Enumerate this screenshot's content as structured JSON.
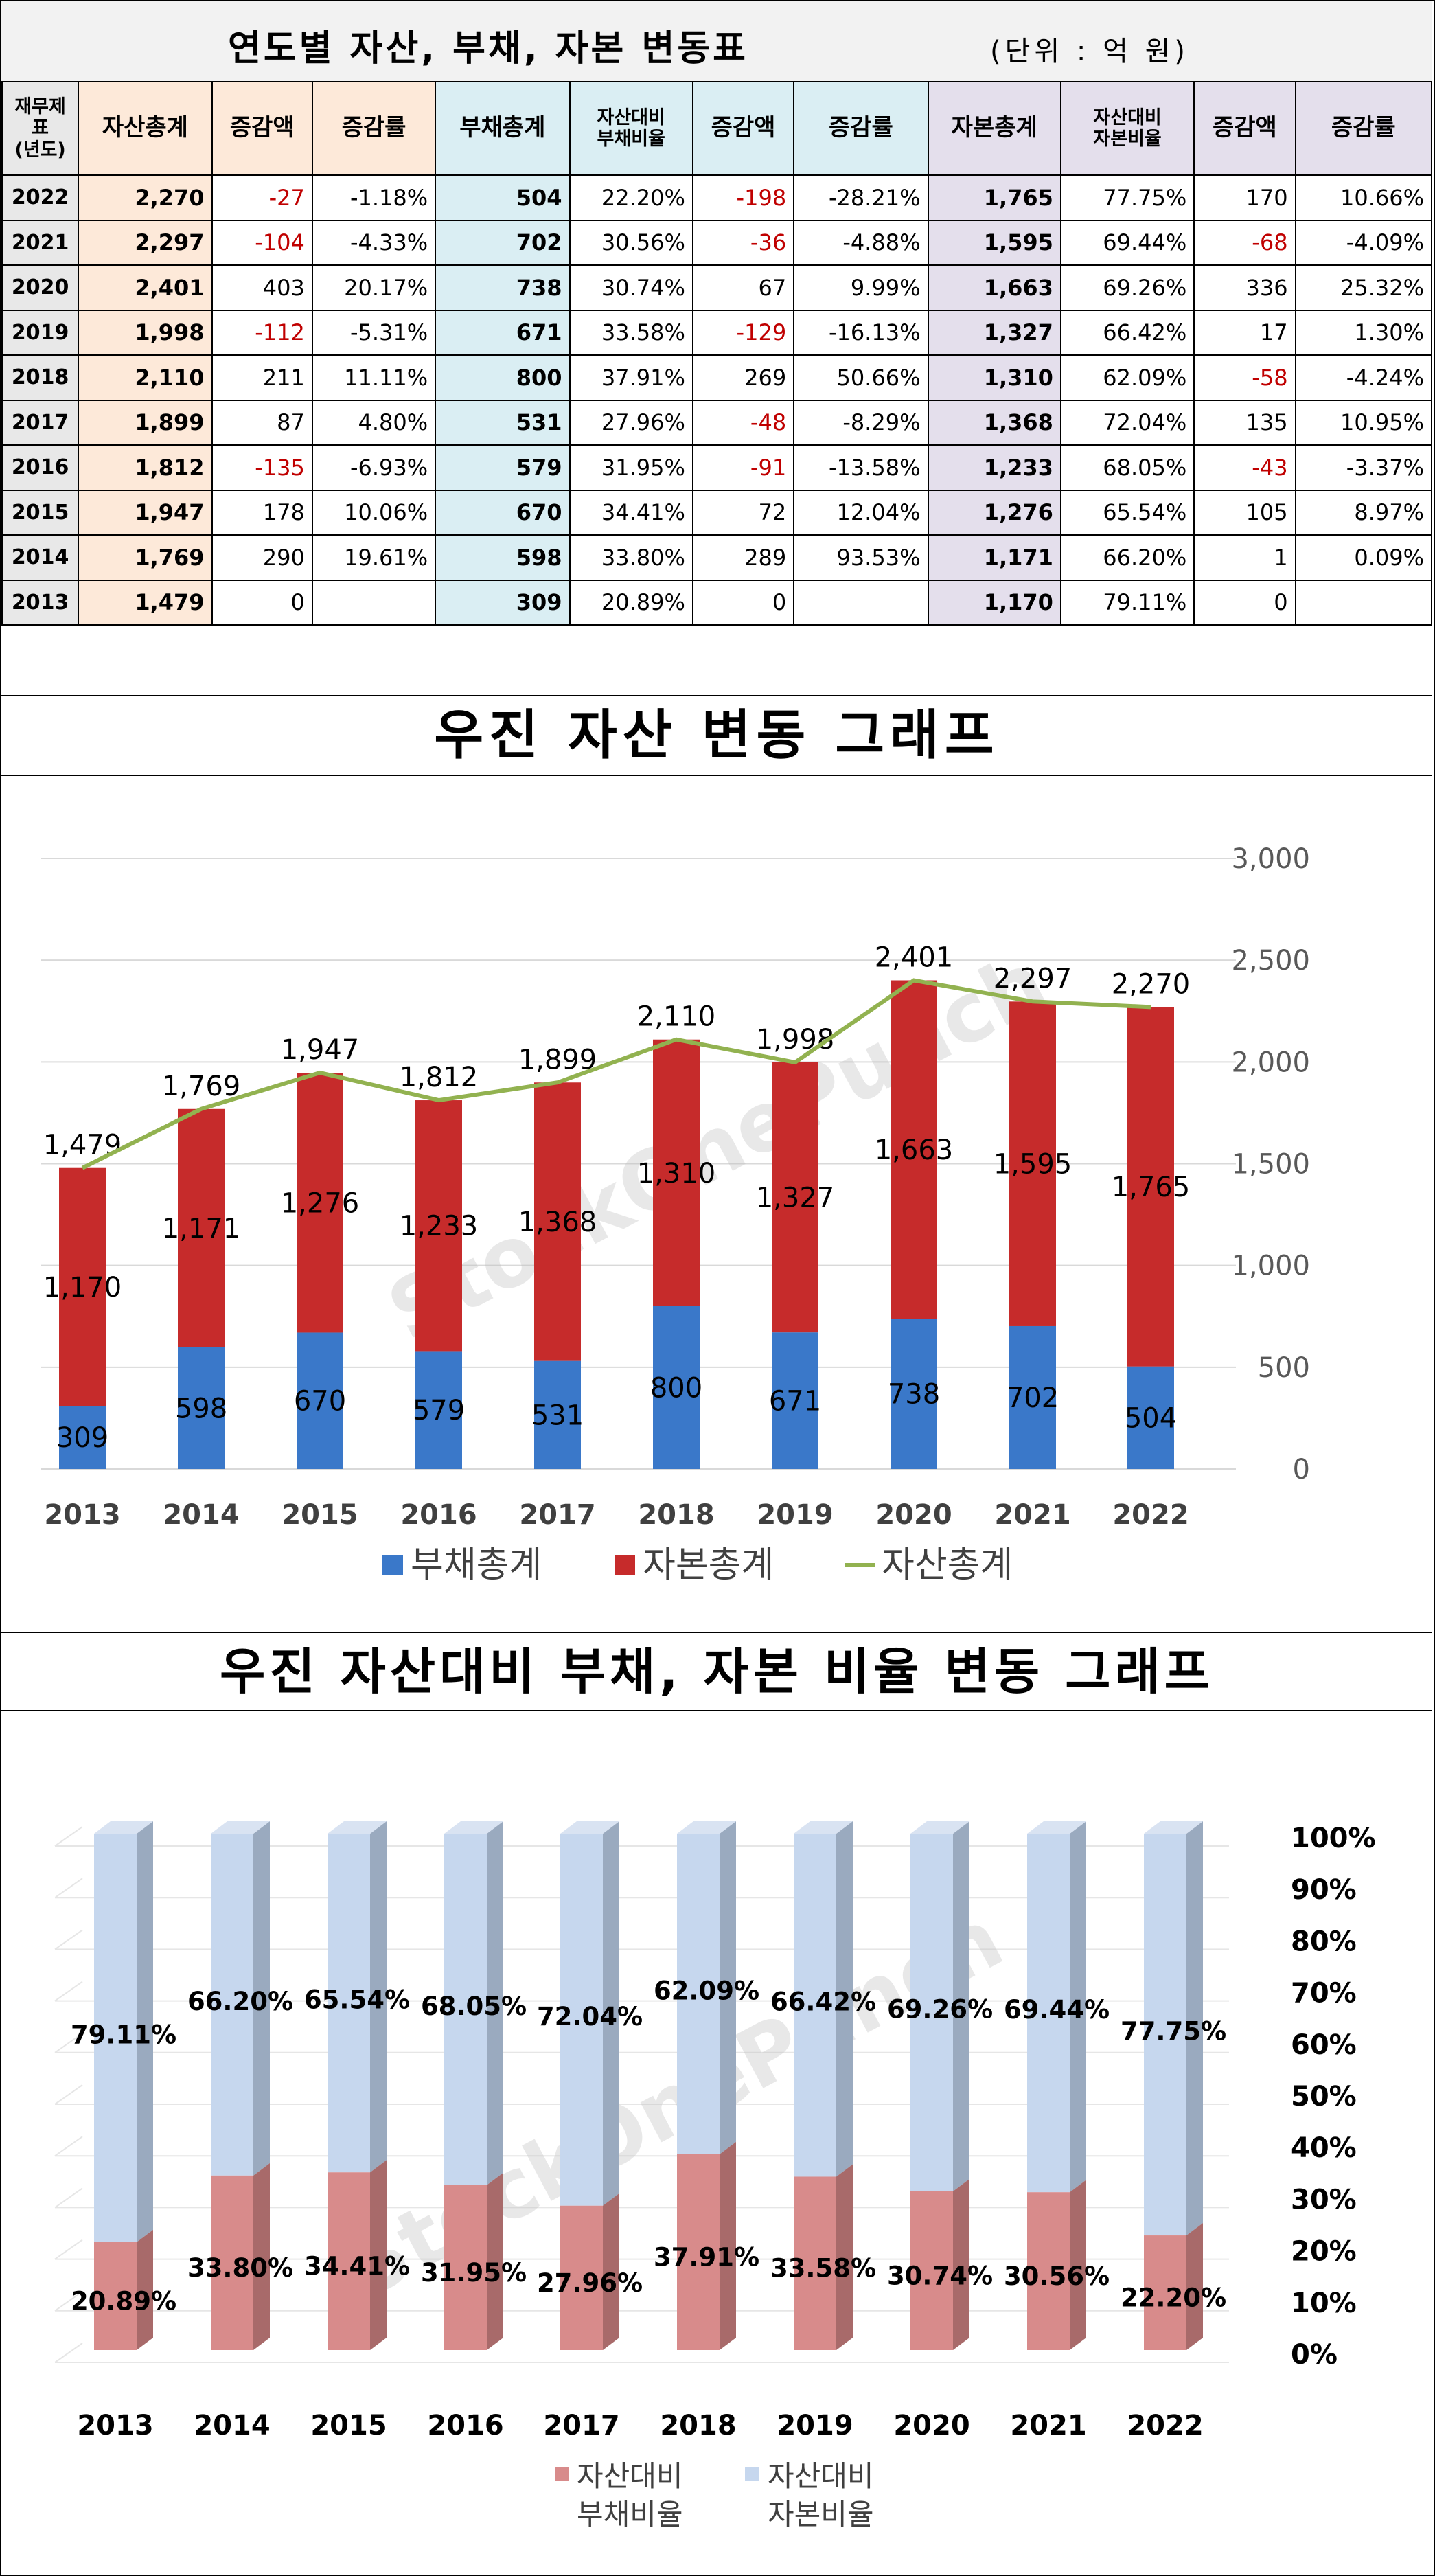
{
  "table": {
    "title": "연도별 자산, 부채, 자본 변동표",
    "unit": "(단위 : 억 원)",
    "headers": [
      "재무제표\n(년도)",
      "자산총계",
      "증감액",
      "증감률",
      "부채총계",
      "자산대비\n부채비율",
      "증감액",
      "증감률",
      "자본총계",
      "자산대비\n자본비율",
      "증감액",
      "증감률"
    ],
    "rows": [
      [
        "2022",
        "2,270",
        "-27",
        "-1.18%",
        "504",
        "22.20%",
        "-198",
        "-28.21%",
        "1,765",
        "77.75%",
        "170",
        "10.66%"
      ],
      [
        "2021",
        "2,297",
        "-104",
        "-4.33%",
        "702",
        "30.56%",
        "-36",
        "-4.88%",
        "1,595",
        "69.44%",
        "-68",
        "-4.09%"
      ],
      [
        "2020",
        "2,401",
        "403",
        "20.17%",
        "738",
        "30.74%",
        "67",
        "9.99%",
        "1,663",
        "69.26%",
        "336",
        "25.32%"
      ],
      [
        "2019",
        "1,998",
        "-112",
        "-5.31%",
        "671",
        "33.58%",
        "-129",
        "-16.13%",
        "1,327",
        "66.42%",
        "17",
        "1.30%"
      ],
      [
        "2018",
        "2,110",
        "211",
        "11.11%",
        "800",
        "37.91%",
        "269",
        "50.66%",
        "1,310",
        "62.09%",
        "-58",
        "-4.24%"
      ],
      [
        "2017",
        "1,899",
        "87",
        "4.80%",
        "531",
        "27.96%",
        "-48",
        "-8.29%",
        "1,368",
        "72.04%",
        "135",
        "10.95%"
      ],
      [
        "2016",
        "1,812",
        "-135",
        "-6.93%",
        "579",
        "31.95%",
        "-91",
        "-13.58%",
        "1,233",
        "68.05%",
        "-43",
        "-3.37%"
      ],
      [
        "2015",
        "1,947",
        "178",
        "10.06%",
        "670",
        "34.41%",
        "72",
        "12.04%",
        "1,276",
        "65.54%",
        "105",
        "8.97%"
      ],
      [
        "2014",
        "1,769",
        "290",
        "19.61%",
        "598",
        "33.80%",
        "289",
        "93.53%",
        "1,171",
        "66.20%",
        "1",
        "0.09%"
      ],
      [
        "2013",
        "1,479",
        "0",
        "",
        "309",
        "20.89%",
        "0",
        "",
        "1,170",
        "79.11%",
        "0",
        ""
      ]
    ]
  },
  "chart1_title": "우진 자산 변동 그래프",
  "chart2_title": "우진 자산대비 부채, 자본 비율 변동 그래프",
  "watermark": "StockOnePunch",
  "colors": {
    "debt": "#3a78c9",
    "equity": "#c62b2b",
    "assets_line": "#92b250",
    "debt_ratio": "#d88b8b",
    "equity_ratio": "#c6d7ee"
  },
  "chart_data": [
    {
      "type": "bar",
      "stacked": true,
      "title": "우진 자산 변동 그래프",
      "categories": [
        "2013",
        "2014",
        "2015",
        "2016",
        "2017",
        "2018",
        "2019",
        "2020",
        "2021",
        "2022"
      ],
      "series": [
        {
          "name": "부채총계",
          "type": "bar",
          "values": [
            309,
            598,
            670,
            579,
            531,
            800,
            671,
            738,
            702,
            504
          ]
        },
        {
          "name": "자본총계",
          "type": "bar",
          "values": [
            1170,
            1171,
            1276,
            1233,
            1368,
            1310,
            1327,
            1663,
            1595,
            1765
          ]
        },
        {
          "name": "자산총계",
          "type": "line",
          "values": [
            1479,
            1769,
            1947,
            1812,
            1899,
            2110,
            1998,
            2401,
            2297,
            2270
          ]
        }
      ],
      "y_ticks": [
        "0",
        "500",
        "1,000",
        "1,500",
        "2,000",
        "2,500",
        "3,000"
      ],
      "ylim": [
        0,
        3000
      ],
      "y_axis_side": "right",
      "legend": "bottom"
    },
    {
      "type": "bar",
      "stacked": true,
      "percent": true,
      "title": "우진 자산대비 부채, 자본 비율 변동 그래프",
      "categories": [
        "2013",
        "2014",
        "2015",
        "2016",
        "2017",
        "2018",
        "2019",
        "2020",
        "2021",
        "2022"
      ],
      "series": [
        {
          "name": "자산대비 부채비율",
          "values": [
            20.89,
            33.8,
            34.41,
            31.95,
            27.96,
            37.91,
            33.58,
            30.74,
            30.56,
            22.2
          ],
          "labels": [
            "20.89%",
            "33.80%",
            "34.41%",
            "31.95%",
            "27.96%",
            "37.91%",
            "33.58%",
            "30.74%",
            "30.56%",
            "22.20%"
          ]
        },
        {
          "name": "자산대비 자본비율",
          "values": [
            79.11,
            66.2,
            65.54,
            68.05,
            72.04,
            62.09,
            66.42,
            69.26,
            69.44,
            77.75
          ],
          "labels": [
            "79.11%",
            "66.20%",
            "65.54%",
            "68.05%",
            "72.04%",
            "62.09%",
            "66.42%",
            "69.26%",
            "69.44%",
            "77.75%"
          ]
        }
      ],
      "y_ticks": [
        "0%",
        "10%",
        "20%",
        "30%",
        "40%",
        "50%",
        "60%",
        "70%",
        "80%",
        "90%",
        "100%"
      ],
      "ylim": [
        0,
        100
      ],
      "y_axis_side": "right",
      "legend": "bottom",
      "legend_labels": [
        [
          "자산대비",
          "부채비율"
        ],
        [
          "자산대비",
          "자본비율"
        ]
      ]
    }
  ]
}
